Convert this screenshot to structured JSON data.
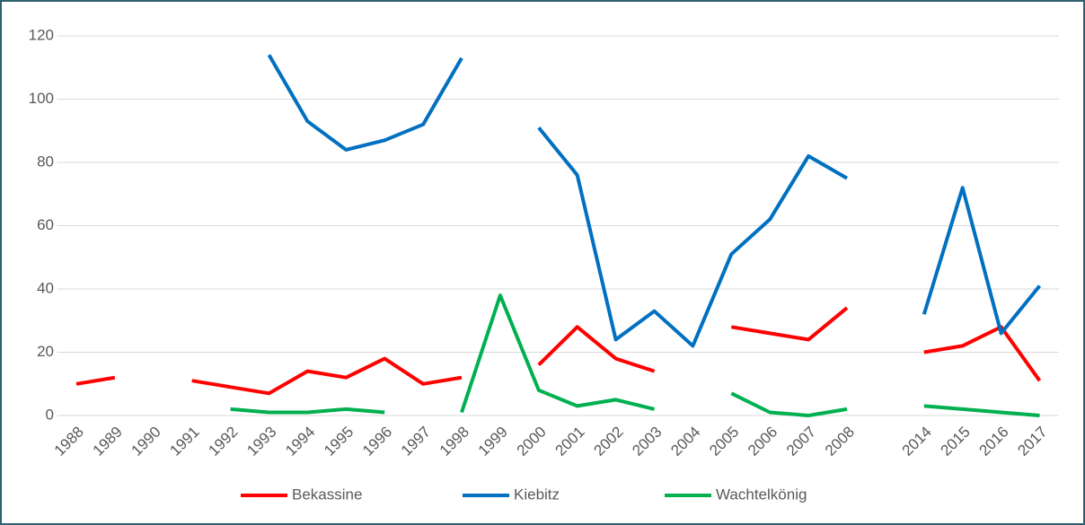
{
  "chart_data": {
    "type": "line",
    "categories": [
      "1988",
      "1989",
      "1990",
      "1991",
      "1992",
      "1993",
      "1994",
      "1995",
      "1996",
      "1997",
      "1998",
      "1999",
      "2000",
      "2001",
      "2002",
      "2003",
      "2004",
      "2005",
      "2006",
      "2007",
      "2008",
      null,
      "2014",
      "2015",
      "2016",
      "2017"
    ],
    "series": [
      {
        "name": "Bekassine",
        "color": "#ff0000",
        "values": [
          10,
          12,
          null,
          11,
          9,
          7,
          14,
          12,
          18,
          10,
          12,
          null,
          16,
          28,
          18,
          14,
          null,
          28,
          26,
          24,
          34,
          null,
          20,
          22,
          28,
          11
        ]
      },
      {
        "name": "Kiebitz",
        "color": "#0070c0",
        "values": [
          null,
          null,
          null,
          null,
          null,
          114,
          93,
          84,
          87,
          92,
          113,
          null,
          91,
          76,
          24,
          33,
          22,
          51,
          62,
          82,
          75,
          null,
          32,
          72,
          26,
          41
        ]
      },
      {
        "name": "Wachtelkönig",
        "color": "#00b050",
        "values": [
          null,
          null,
          null,
          null,
          2,
          1,
          1,
          2,
          1,
          null,
          1,
          38,
          8,
          3,
          5,
          2,
          null,
          7,
          1,
          0,
          2,
          null,
          3,
          2,
          1,
          0
        ]
      }
    ],
    "ylim": [
      0,
      120
    ],
    "yticks": [
      0,
      20,
      40,
      60,
      80,
      100,
      120
    ],
    "grid": true,
    "legend": "bottom"
  }
}
